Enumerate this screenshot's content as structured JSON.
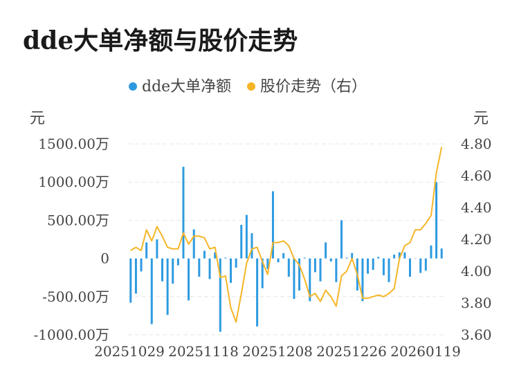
{
  "title": "dde大单净额与股价走势",
  "chart_data": {
    "type": "bar+line",
    "legend_position": "top",
    "grid": true,
    "colors": {
      "bar": "#2d9ae0",
      "line": "#f5b526"
    },
    "series": [
      {
        "name": "dde大单净额",
        "type": "bar",
        "axis": "left"
      },
      {
        "name": "股价走势（右）",
        "type": "line",
        "axis": "right"
      }
    ],
    "y_left": {
      "unit": "元",
      "ticks": [
        -1000,
        -500,
        0,
        500,
        1000,
        1500
      ],
      "tick_labels": [
        "-1000.00万",
        "-500.00万",
        "0",
        "500.00万",
        "1000.00万",
        "1500.00万"
      ],
      "range": [
        -1000,
        1500
      ]
    },
    "y_right": {
      "unit": "元",
      "ticks": [
        3.6,
        3.8,
        4.0,
        4.2,
        4.4,
        4.6,
        4.8
      ],
      "tick_labels": [
        "3.60",
        "3.80",
        "4.00",
        "4.20",
        "4.40",
        "4.60",
        "4.80"
      ],
      "range": [
        3.6,
        4.8
      ]
    },
    "x_labels": [
      "20251029",
      "20251118",
      "20251208",
      "20251226",
      "20260119"
    ],
    "bar_values": [
      -580,
      -460,
      -170,
      210,
      -860,
      250,
      -300,
      -740,
      -330,
      -90,
      1200,
      -550,
      380,
      -240,
      100,
      -270,
      80,
      -960,
      10,
      -320,
      -120,
      440,
      570,
      330,
      -890,
      -390,
      -140,
      880,
      -50,
      70,
      -240,
      -530,
      -420,
      10,
      -560,
      -180,
      -300,
      210,
      -40,
      -310,
      500,
      10,
      70,
      -420,
      -560,
      -200,
      -150,
      20,
      -220,
      -310,
      50,
      80,
      80,
      -240,
      0,
      -190,
      -160,
      170,
      1000,
      130
    ],
    "line_values": [
      4.13,
      4.15,
      4.13,
      4.26,
      4.19,
      4.28,
      4.22,
      4.15,
      4.14,
      4.14,
      4.24,
      4.17,
      4.22,
      4.22,
      4.21,
      4.14,
      4.15,
      3.96,
      3.97,
      3.77,
      3.68,
      3.86,
      4.05,
      4.14,
      4.15,
      4.06,
      3.98,
      4.18,
      4.18,
      4.19,
      4.16,
      4.08,
      4.04,
      3.95,
      3.84,
      3.86,
      3.81,
      3.88,
      3.84,
      3.78,
      3.97,
      4.0,
      4.08,
      3.98,
      3.83,
      3.83,
      3.84,
      3.85,
      3.84,
      3.86,
      3.89,
      4.08,
      4.16,
      4.18,
      4.26,
      4.26,
      4.3,
      4.35,
      4.62,
      4.78
    ]
  }
}
